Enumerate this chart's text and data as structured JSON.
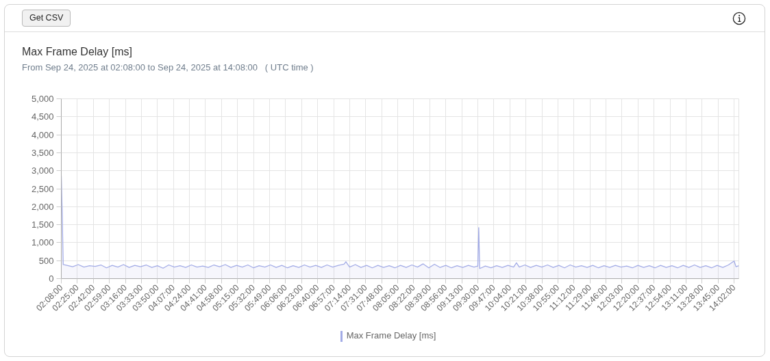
{
  "chart_data": {
    "type": "area",
    "title": "Max Frame Delay [ms]",
    "subtitle": "From Sep 24, 2025 at 02:08:00 to Sep 24, 2025 at 14:08:00   ( UTC time )",
    "annotations": [
      "Get CSV"
    ],
    "x": [
      2.1333,
      2.15,
      2.1667,
      2.2333,
      2.3333,
      2.4333,
      2.5333,
      2.6333,
      2.7333,
      2.8333,
      2.9333,
      3.0333,
      3.1333,
      3.2333,
      3.3333,
      3.4333,
      3.5333,
      3.6333,
      3.7333,
      3.8333,
      3.9333,
      4.0333,
      4.1333,
      4.2333,
      4.3333,
      4.4333,
      4.5333,
      4.6333,
      4.7333,
      4.8333,
      4.9333,
      5.0333,
      5.1333,
      5.2333,
      5.3333,
      5.4333,
      5.5333,
      5.6333,
      5.7333,
      5.8333,
      5.9333,
      6.0333,
      6.1333,
      6.2333,
      6.3333,
      6.4333,
      6.5333,
      6.6333,
      6.7333,
      6.8333,
      6.9333,
      7.0333,
      7.1333,
      7.1667,
      7.2333,
      7.3333,
      7.4333,
      7.5333,
      7.6333,
      7.7333,
      7.8333,
      7.9333,
      8.0333,
      8.1333,
      8.2333,
      8.3333,
      8.4333,
      8.5333,
      8.6333,
      8.7333,
      8.8333,
      8.9333,
      9.0333,
      9.1333,
      9.2333,
      9.3333,
      9.4333,
      9.5,
      9.5167,
      9.5333,
      9.6333,
      9.7333,
      9.8333,
      9.9333,
      10.0333,
      10.1333,
      10.1833,
      10.2333,
      10.3333,
      10.4333,
      10.5333,
      10.6333,
      10.7333,
      10.8333,
      10.9333,
      11.0333,
      11.1333,
      11.2333,
      11.3333,
      11.4333,
      11.5333,
      11.6333,
      11.7333,
      11.8333,
      11.9333,
      12.0333,
      12.1333,
      12.2333,
      12.3333,
      12.4333,
      12.5333,
      12.6333,
      12.7333,
      12.8333,
      12.9333,
      13.0333,
      13.1333,
      13.2333,
      13.3333,
      13.4333,
      13.5333,
      13.6333,
      13.7333,
      13.8333,
      13.9333,
      14.0333,
      14.0667,
      14.1167
    ],
    "series": [
      {
        "name": "Max Frame Delay [ms]",
        "color": "#a2abe6",
        "values": [
          2850,
          1750,
          390,
          370,
          330,
          390,
          320,
          360,
          340,
          380,
          300,
          370,
          320,
          390,
          310,
          370,
          330,
          380,
          310,
          360,
          290,
          380,
          320,
          360,
          310,
          380,
          320,
          350,
          310,
          380,
          330,
          390,
          310,
          370,
          320,
          380,
          300,
          360,
          320,
          380,
          310,
          370,
          300,
          360,
          310,
          380,
          320,
          370,
          310,
          380,
          320,
          370,
          400,
          470,
          320,
          390,
          310,
          370,
          300,
          370,
          310,
          360,
          300,
          370,
          310,
          380,
          320,
          410,
          300,
          400,
          310,
          370,
          300,
          360,
          310,
          370,
          320,
          350,
          1420,
          280,
          350,
          300,
          360,
          310,
          370,
          320,
          440,
          320,
          380,
          310,
          370,
          320,
          380,
          310,
          370,
          300,
          380,
          320,
          360,
          310,
          370,
          300,
          360,
          310,
          370,
          320,
          350,
          300,
          370,
          310,
          360,
          300,
          370,
          310,
          360,
          300,
          370,
          310,
          380,
          310,
          360,
          300,
          370,
          310,
          380,
          490,
          330,
          360
        ]
      }
    ],
    "xlim": [
      2.1333,
      14.1167
    ],
    "xticks": [
      {
        "value": 2.1333,
        "label": "02:08:00"
      },
      {
        "value": 2.4167,
        "label": "02:25:00"
      },
      {
        "value": 2.7,
        "label": "02:42:00"
      },
      {
        "value": 2.9833,
        "label": "02:59:00"
      },
      {
        "value": 3.2667,
        "label": "03:16:00"
      },
      {
        "value": 3.55,
        "label": "03:33:00"
      },
      {
        "value": 3.8333,
        "label": "03:50:00"
      },
      {
        "value": 4.1167,
        "label": "04:07:00"
      },
      {
        "value": 4.4,
        "label": "04:24:00"
      },
      {
        "value": 4.6833,
        "label": "04:41:00"
      },
      {
        "value": 4.9667,
        "label": "04:58:00"
      },
      {
        "value": 5.25,
        "label": "05:15:00"
      },
      {
        "value": 5.5333,
        "label": "05:32:00"
      },
      {
        "value": 5.8167,
        "label": "05:49:00"
      },
      {
        "value": 6.1,
        "label": "06:06:00"
      },
      {
        "value": 6.3833,
        "label": "06:23:00"
      },
      {
        "value": 6.6667,
        "label": "06:40:00"
      },
      {
        "value": 6.95,
        "label": "06:57:00"
      },
      {
        "value": 7.2333,
        "label": "07:14:00"
      },
      {
        "value": 7.5167,
        "label": "07:31:00"
      },
      {
        "value": 7.8,
        "label": "07:48:00"
      },
      {
        "value": 8.0833,
        "label": "08:05:00"
      },
      {
        "value": 8.3667,
        "label": "08:22:00"
      },
      {
        "value": 8.65,
        "label": "08:39:00"
      },
      {
        "value": 8.9333,
        "label": "08:56:00"
      },
      {
        "value": 9.2167,
        "label": "09:13:00"
      },
      {
        "value": 9.5,
        "label": "09:30:00"
      },
      {
        "value": 9.7833,
        "label": "09:47:00"
      },
      {
        "value": 10.0667,
        "label": "10:04:00"
      },
      {
        "value": 10.35,
        "label": "10:21:00"
      },
      {
        "value": 10.6333,
        "label": "10:38:00"
      },
      {
        "value": 10.9167,
        "label": "10:55:00"
      },
      {
        "value": 11.2,
        "label": "11:12:00"
      },
      {
        "value": 11.4833,
        "label": "11:29:00"
      },
      {
        "value": 11.7667,
        "label": "11:46:00"
      },
      {
        "value": 12.05,
        "label": "12:03:00"
      },
      {
        "value": 12.3333,
        "label": "12:20:00"
      },
      {
        "value": 12.6167,
        "label": "12:37:00"
      },
      {
        "value": 12.9,
        "label": "12:54:00"
      },
      {
        "value": 13.1833,
        "label": "13:11:00"
      },
      {
        "value": 13.4667,
        "label": "13:28:00"
      },
      {
        "value": 13.75,
        "label": "13:45:00"
      },
      {
        "value": 14.0333,
        "label": "14:02:00"
      }
    ],
    "ylim": [
      0,
      5000
    ],
    "yticks": [
      0,
      500,
      {
        "value": 1000,
        "label": "1,000"
      },
      {
        "value": 1500,
        "label": "1,500"
      },
      {
        "value": 2000,
        "label": "2,000"
      },
      {
        "value": 2500,
        "label": "2,500"
      },
      {
        "value": 3000,
        "label": "3,000"
      },
      {
        "value": 3500,
        "label": "3,500"
      },
      {
        "value": 4000,
        "label": "4,000"
      },
      {
        "value": 4500,
        "label": "4,500"
      },
      {
        "value": 5000,
        "label": "5,000"
      }
    ],
    "grid": true,
    "legend": "bottom"
  }
}
